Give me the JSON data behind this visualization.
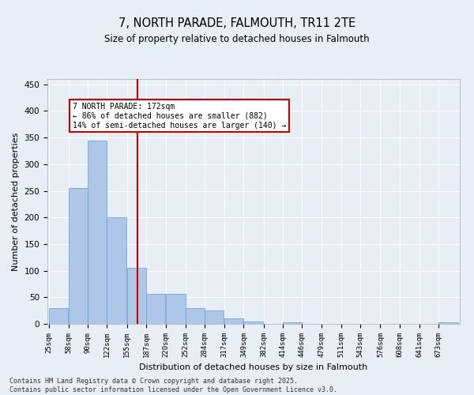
{
  "title": "7, NORTH PARADE, FALMOUTH, TR11 2TE",
  "subtitle": "Size of property relative to detached houses in Falmouth",
  "xlabel": "Distribution of detached houses by size in Falmouth",
  "ylabel": "Number of detached properties",
  "bar_color": "#aec6e8",
  "bar_edge_color": "#5a9fd4",
  "bg_color": "#e8eef6",
  "grid_color": "#ffffff",
  "red_line_x": 172,
  "annotation_text": "7 NORTH PARADE: 172sqm\n← 86% of detached houses are smaller (882)\n14% of semi-detached houses are larger (140) →",
  "annotation_box_color": "#ffffff",
  "annotation_border_color": "#cc0000",
  "footer": "Contains HM Land Registry data © Crown copyright and database right 2025.\nContains public sector information licensed under the Open Government Licence v3.0.",
  "bins": [
    25,
    58,
    90,
    122,
    155,
    187,
    220,
    252,
    284,
    317,
    349,
    382,
    414,
    446,
    479,
    511,
    543,
    576,
    608,
    641,
    673
  ],
  "values": [
    30,
    255,
    345,
    200,
    105,
    57,
    57,
    30,
    25,
    10,
    5,
    0,
    3,
    0,
    0,
    0,
    0,
    0,
    0,
    0,
    3
  ],
  "ylim": [
    0,
    460
  ],
  "yticks": [
    0,
    50,
    100,
    150,
    200,
    250,
    300,
    350,
    400,
    450
  ],
  "bar_spacing": 33
}
